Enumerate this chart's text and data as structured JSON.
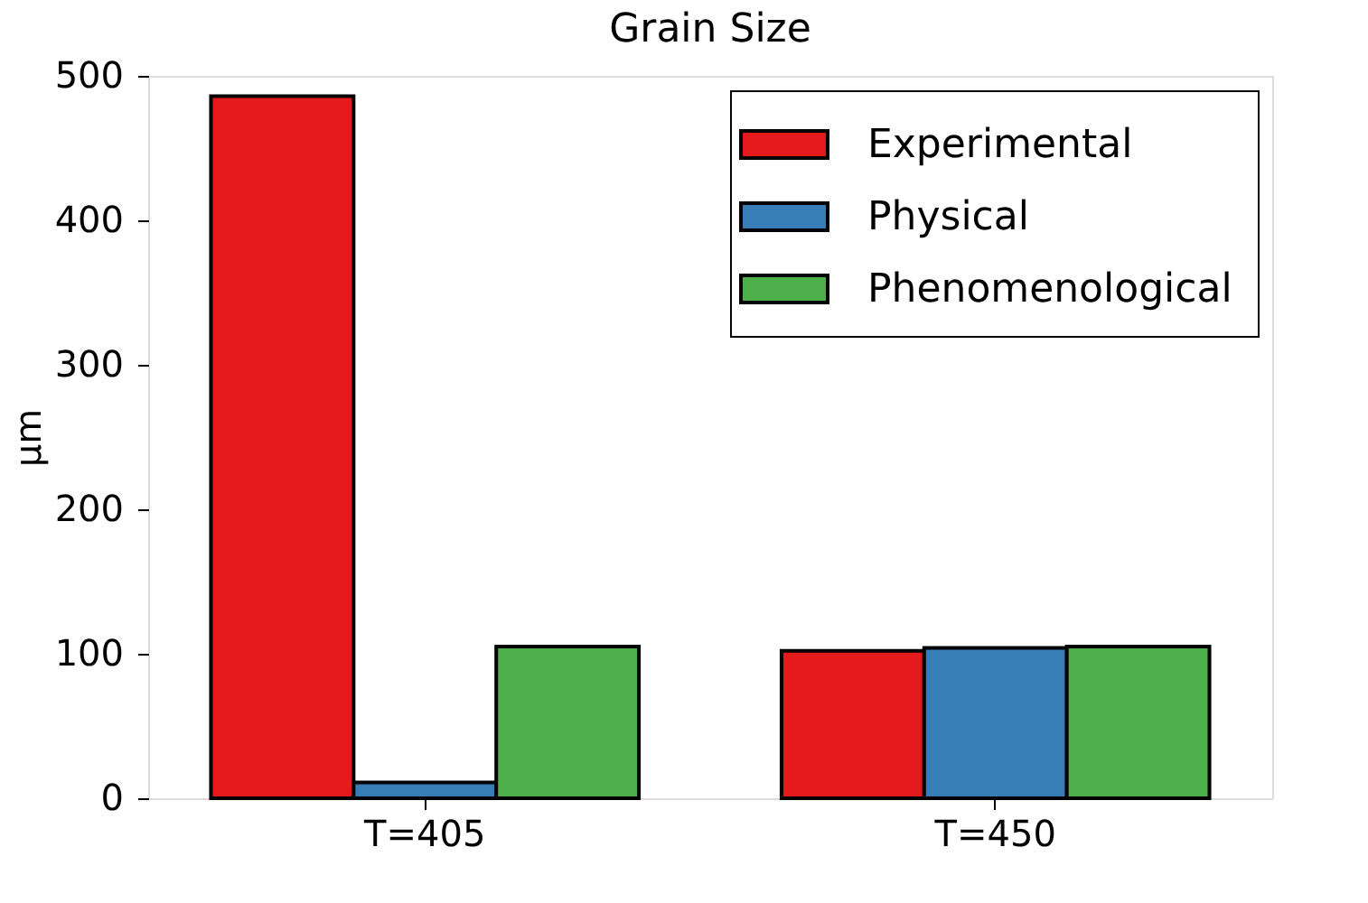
{
  "chart_data": {
    "type": "bar",
    "title": "Grain Size",
    "ylabel": "μm",
    "categories": [
      "T=405",
      "T=450"
    ],
    "series": [
      {
        "name": "Experimental",
        "color": "#e41a1c",
        "values": [
          486,
          102
        ]
      },
      {
        "name": "Physical",
        "color": "#377eb8",
        "values": [
          11,
          104
        ]
      },
      {
        "name": "Phenomenological",
        "color": "#4daf4a",
        "values": [
          105,
          105
        ]
      }
    ],
    "ylim": [
      0,
      500
    ],
    "yticks": [
      0,
      100,
      200,
      300,
      400,
      500
    ],
    "legend": "top right"
  }
}
